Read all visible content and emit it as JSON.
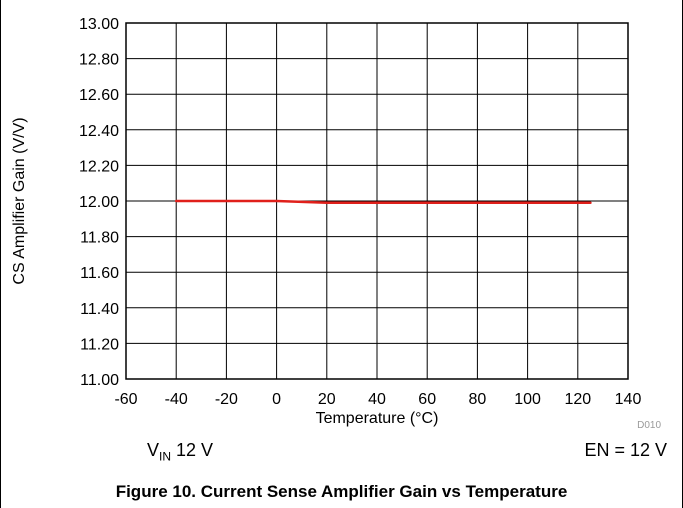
{
  "chart_data": {
    "type": "line",
    "title": "",
    "xlabel": "Temperature (°C)",
    "ylabel": "CS Amplifier Gain (V/V)",
    "xlim": [
      -60,
      140
    ],
    "ylim": [
      11.0,
      13.0
    ],
    "x_ticks": [
      "-60",
      "-40",
      "-20",
      "0",
      "20",
      "40",
      "60",
      "80",
      "100",
      "120",
      "140"
    ],
    "y_ticks": [
      "11.00",
      "11.20",
      "11.40",
      "11.60",
      "11.80",
      "12.00",
      "12.20",
      "12.40",
      "12.60",
      "12.80",
      "13.00"
    ],
    "grid": true,
    "series": [
      {
        "color": "#e0201b",
        "x": [
          -40,
          -20,
          0,
          20,
          40,
          60,
          80,
          100,
          125
        ],
        "y": [
          12.0,
          12.0,
          12.0,
          11.99,
          11.99,
          11.99,
          11.99,
          11.99,
          11.99
        ]
      }
    ]
  },
  "conditions": {
    "vin_symbol": "V",
    "vin_subscript": "IN",
    "vin_value": " 12 V",
    "en": "EN = 12 V"
  },
  "doc_code": "D010",
  "caption": "Figure 10. Current Sense Amplifier Gain vs Temperature"
}
